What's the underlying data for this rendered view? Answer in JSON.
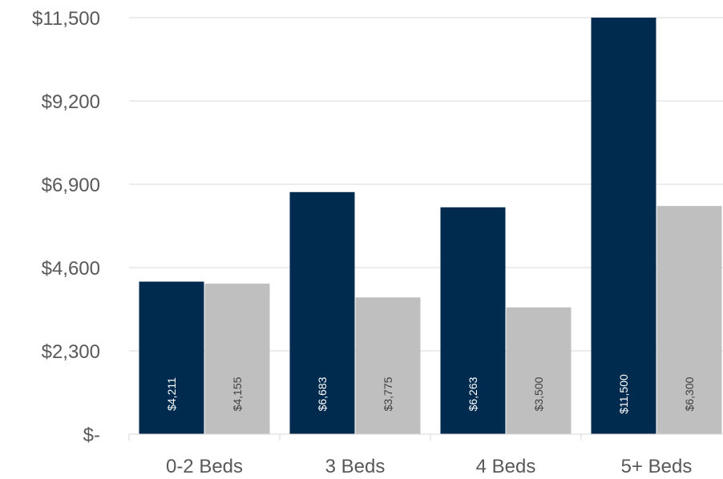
{
  "chart_data": {
    "type": "bar",
    "categories": [
      "0-2 Beds",
      "3 Beds",
      "4 Beds",
      "5+ Beds"
    ],
    "series": [
      {
        "values": [
          4211,
          6683,
          6263,
          11500
        ],
        "labels": [
          "$4,211",
          "$6,683",
          "$6,263",
          "$11,500"
        ],
        "color": "#002b4f",
        "label_color": "#ffffff"
      },
      {
        "values": [
          4155,
          3775,
          3500,
          6300
        ],
        "labels": [
          "$4,155",
          "$3,775",
          "$3,500",
          "$6,300"
        ],
        "color": "#bfbfbf",
        "label_color": "#404040"
      }
    ],
    "ylim": [
      0,
      11500
    ],
    "yticks": [
      0,
      2300,
      4600,
      6900,
      9200,
      11500
    ],
    "ytick_labels": [
      "$-",
      "$2,300",
      "$4,600",
      "$6,900",
      "$9,200",
      "$11,500"
    ],
    "grid": true,
    "legend": "none"
  }
}
